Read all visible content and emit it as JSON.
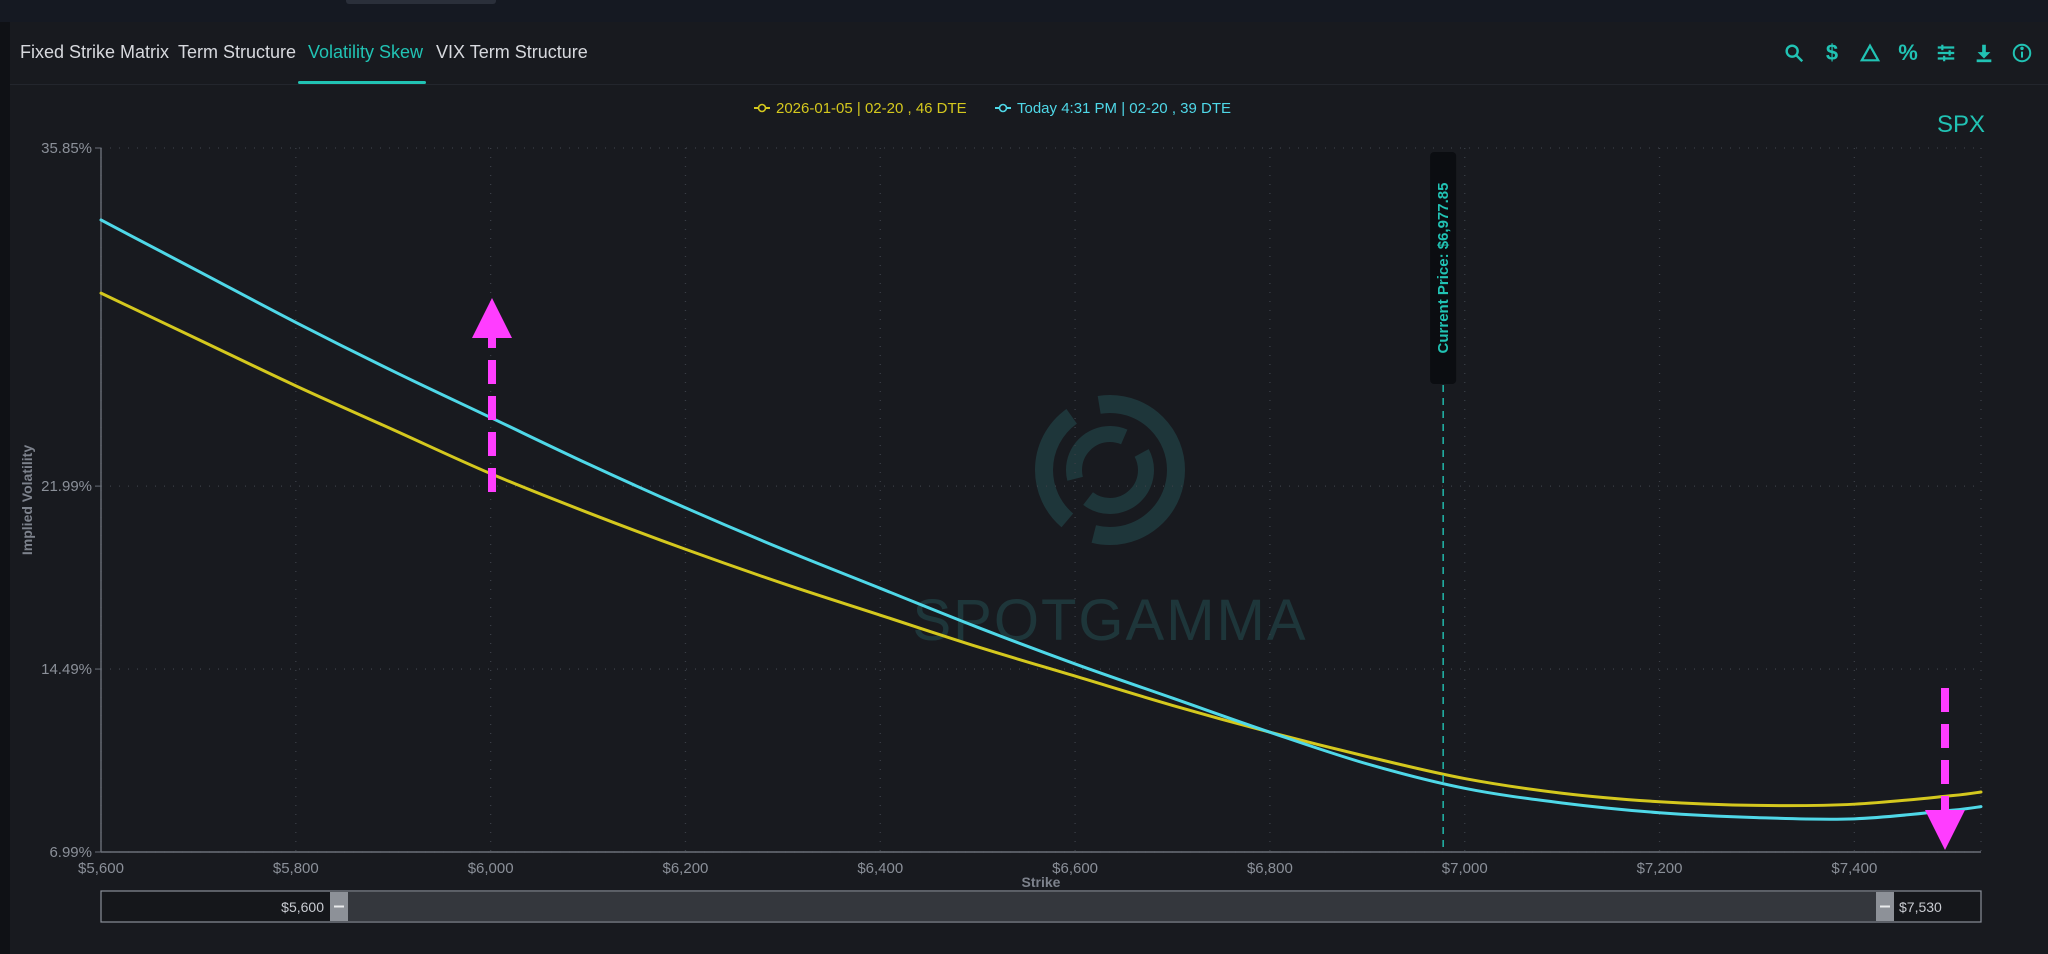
{
  "tabs": [
    {
      "label": "Fixed Strike Matrix",
      "active": false
    },
    {
      "label": "Term Structure",
      "active": false
    },
    {
      "label": "Volatility Skew",
      "active": true
    },
    {
      "label": "VIX Term Structure",
      "active": false
    }
  ],
  "toolbar": {
    "icons": [
      "search-icon",
      "dollar-icon",
      "delta-icon",
      "percent-icon",
      "sliders-icon",
      "download-icon",
      "info-icon"
    ],
    "dollar_glyph": "$",
    "percent_glyph": "%"
  },
  "colors": {
    "accent": "#21c3b4",
    "series_1": "#d4c81e",
    "series_2": "#4fd8e8",
    "annotation_arrows": "#ff3dff",
    "background": "#181a1f"
  },
  "watermark": "SPOTGAMMA",
  "chart_data": {
    "type": "line",
    "ticker_label": "SPX",
    "xlabel": "Strike",
    "ylabel": "Implied Volatility",
    "xlim": [
      5600,
      7530
    ],
    "ylim": [
      6.99,
      35.85
    ],
    "x_ticks": [
      5600,
      5800,
      6000,
      6200,
      6400,
      6600,
      6800,
      7000,
      7200,
      7400
    ],
    "x_tick_labels": [
      "$5,600",
      "$5,800",
      "$6,000",
      "$6,200",
      "$6,400",
      "$6,600",
      "$6,800",
      "$7,000",
      "$7,200",
      "$7,400"
    ],
    "y_ticks": [
      6.99,
      14.49,
      21.99,
      35.85
    ],
    "y_tick_labels": [
      "6.99%",
      "14.49%",
      "21.99%",
      "35.85%"
    ],
    "grid": true,
    "legend_position": "top-center",
    "current_price": 6977.85,
    "current_price_label": "Current Price: $6,977.85",
    "range_slider": {
      "min_label": "$5,600",
      "max_label": "$7,530"
    },
    "series": [
      {
        "name": "2026-01-05 | 02-20 , 46 DTE",
        "x": [
          5600,
          5700,
          5800,
          5900,
          6000,
          6100,
          6200,
          6300,
          6400,
          6500,
          6600,
          6700,
          6800,
          6900,
          7000,
          7100,
          7200,
          7300,
          7400,
          7500,
          7530
        ],
        "values": [
          29.9,
          28.0,
          26.1,
          24.3,
          22.5,
          20.9,
          19.4,
          18.0,
          16.7,
          15.4,
          14.2,
          13.0,
          11.9,
          10.9,
          10.0,
          9.4,
          9.05,
          8.9,
          8.95,
          9.3,
          9.45
        ]
      },
      {
        "name": "Today 4:31 PM | 02-20 , 39 DTE",
        "x": [
          5600,
          5700,
          5800,
          5900,
          6000,
          6100,
          6200,
          6300,
          6400,
          6500,
          6600,
          6700,
          6800,
          6900,
          7000,
          7100,
          7200,
          7300,
          7400,
          7500,
          7530
        ],
        "values": [
          32.9,
          30.8,
          28.7,
          26.7,
          24.8,
          22.9,
          21.1,
          19.4,
          17.8,
          16.2,
          14.7,
          13.3,
          11.9,
          10.6,
          9.6,
          9.0,
          8.6,
          8.4,
          8.35,
          8.7,
          8.85
        ]
      }
    ]
  }
}
